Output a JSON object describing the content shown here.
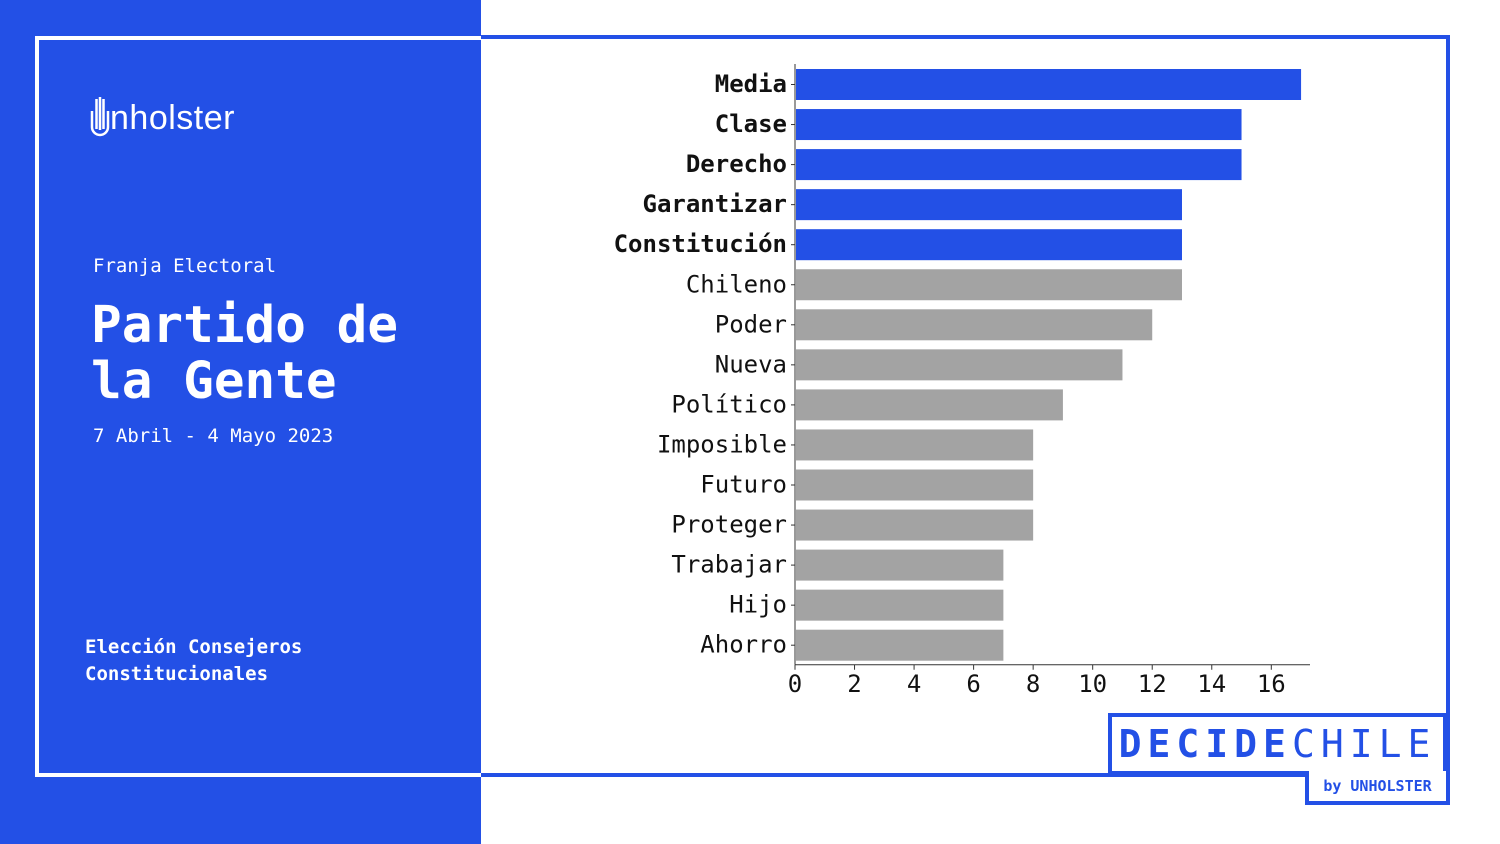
{
  "brand": {
    "logo_text": "nholster",
    "decide": "DECIDE",
    "chile": "CHILE",
    "byline": "by UNHOLSTER"
  },
  "sidebar": {
    "subtitle": "Franja Electoral",
    "title": "Partido de la Gente",
    "dates": "7 Abril - 4 Mayo 2023",
    "election": "Elección Consejeros Constitucionales"
  },
  "colors": {
    "accent": "#2350e6",
    "highlight_bar": "#2350e6",
    "other_bar": "#a3a3a3"
  },
  "chart_data": {
    "type": "bar",
    "orientation": "horizontal",
    "categories": [
      "Media",
      "Clase",
      "Derecho",
      "Garantizar",
      "Constitución",
      "Chileno",
      "Poder",
      "Nueva",
      "Político",
      "Imposible",
      "Futuro",
      "Proteger",
      "Trabajar",
      "Hijo",
      "Ahorro"
    ],
    "values": [
      17,
      15,
      15,
      13,
      13,
      13,
      12,
      11,
      9,
      8,
      8,
      8,
      7,
      7,
      7
    ],
    "highlighted": [
      true,
      true,
      true,
      true,
      true,
      false,
      false,
      false,
      false,
      false,
      false,
      false,
      false,
      false,
      false
    ],
    "x_ticks": [
      0,
      2,
      4,
      6,
      8,
      10,
      12,
      14,
      16
    ],
    "xlim": [
      0,
      17.3
    ],
    "title": "",
    "xlabel": "",
    "ylabel": "",
    "grid": false
  }
}
